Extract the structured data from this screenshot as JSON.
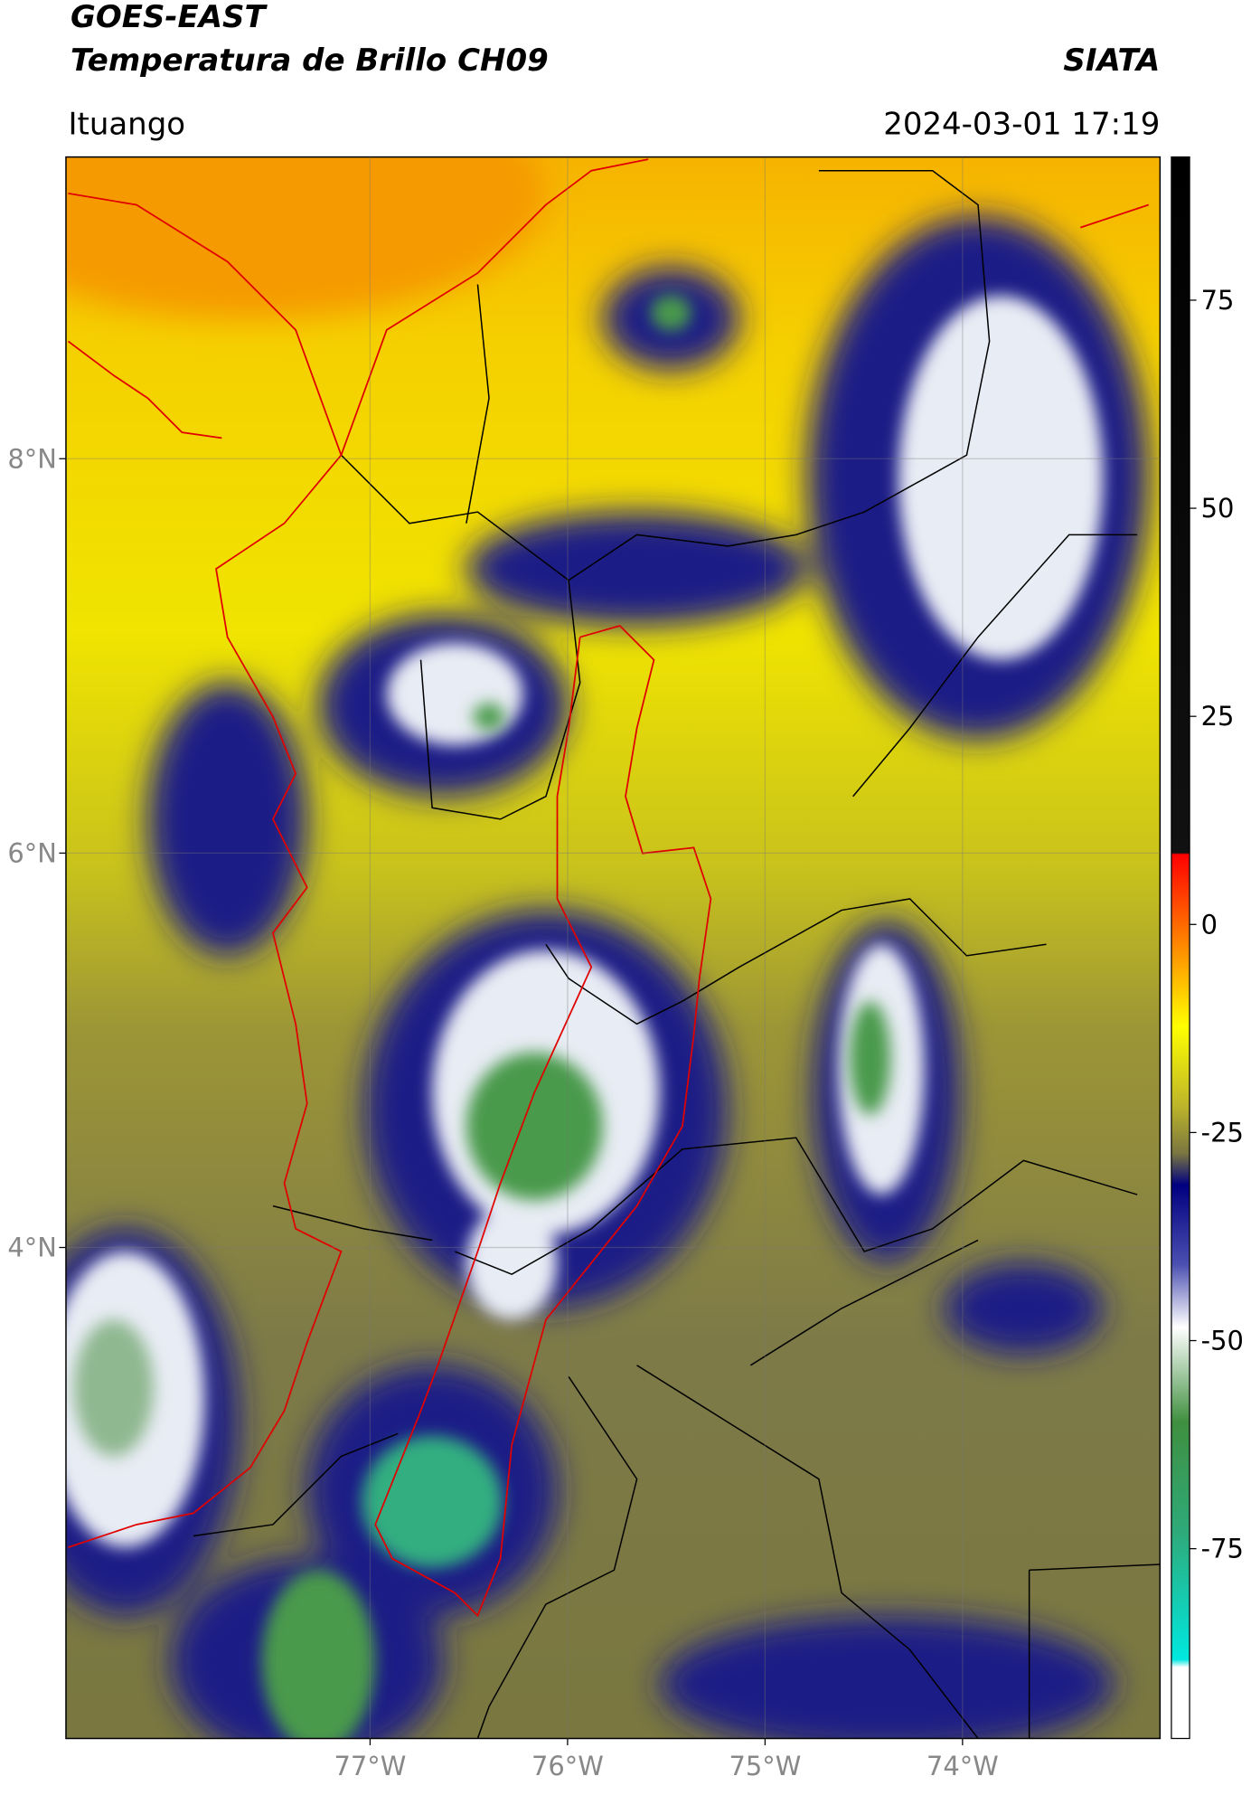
{
  "header": {
    "title": "GOES-EAST",
    "subtitle": "Temperatura de Brillo CH09",
    "source": "SIATA",
    "location": "Ituango",
    "datetime": "2024-03-01 17:19"
  },
  "map": {
    "xlim": [
      -78.54,
      -73.0
    ],
    "ylim": [
      1.51,
      9.53
    ],
    "xticks": [
      {
        "value": -77,
        "label": "77°W"
      },
      {
        "value": -76,
        "label": "76°W"
      },
      {
        "value": -75,
        "label": "75°W"
      },
      {
        "value": -74,
        "label": "74°W"
      }
    ],
    "yticks": [
      {
        "value": 8,
        "label": "8°N"
      },
      {
        "value": 6,
        "label": "6°N"
      },
      {
        "value": 4,
        "label": "4°N"
      }
    ],
    "grid": true
  },
  "colorbar": {
    "lim": [
      -97.8,
      92.2
    ],
    "ticks": [
      75,
      50,
      25,
      0,
      -25,
      -50,
      -75
    ]
  }
}
